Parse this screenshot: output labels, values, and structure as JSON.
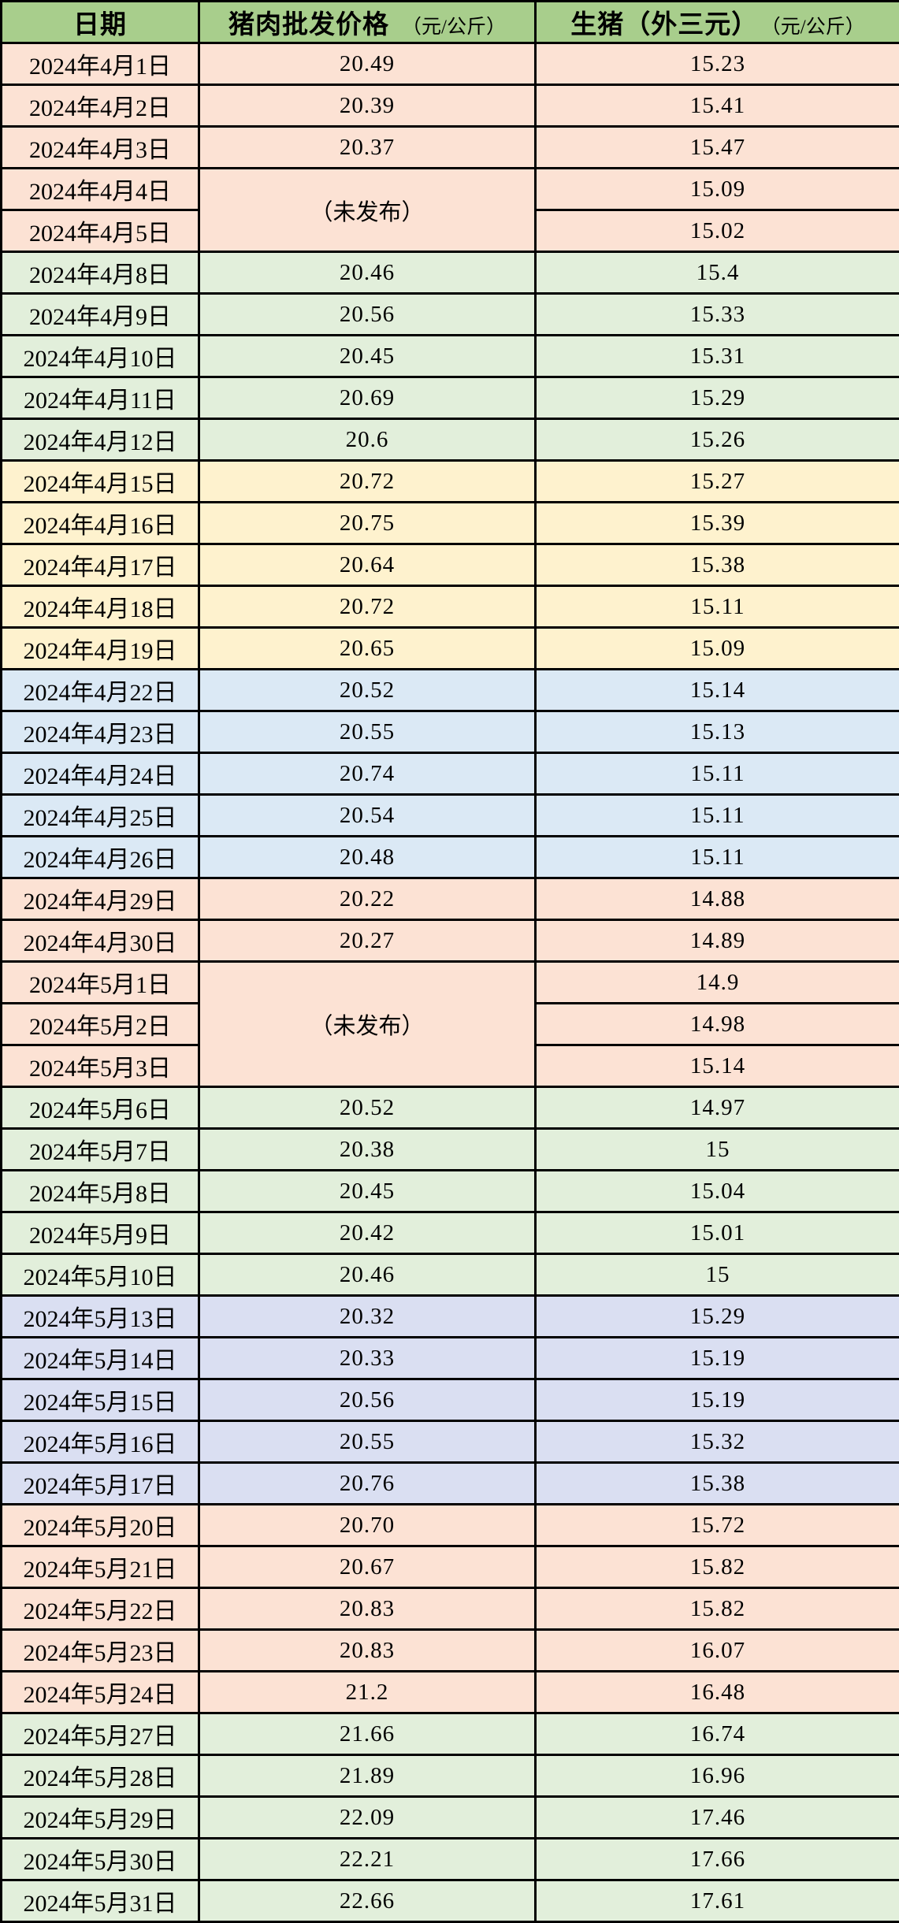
{
  "colors": {
    "header_bg": "#A8CE8C",
    "peach": "#FCE2D4",
    "light_green": "#E2EFDB",
    "light_yellow": "#FEF2CE",
    "light_blue": "#DBE9F5",
    "lavender": "#DADFF2",
    "border": "#000000",
    "text": "#000000"
  },
  "chart_data": {
    "type": "table",
    "columns": [
      {
        "label": "日期",
        "unit": ""
      },
      {
        "label": "猪肉批发价格",
        "unit": "（元/公斤）"
      },
      {
        "label": "生猪（外三元）",
        "unit": "（元/公斤）"
      }
    ],
    "not_published": "（未发布）",
    "rows": [
      {
        "date": "2024年4月1日",
        "pork": "20.49",
        "pig": "15.23",
        "color": "peach"
      },
      {
        "date": "2024年4月2日",
        "pork": "20.39",
        "pig": "15.41",
        "color": "peach"
      },
      {
        "date": "2024年4月3日",
        "pork": "20.37",
        "pig": "15.47",
        "color": "peach"
      },
      {
        "date": "2024年4月4日",
        "pork": "（未发布）",
        "pork_rowspan": 2,
        "pig": "15.09",
        "color": "peach"
      },
      {
        "date": "2024年4月5日",
        "pork": null,
        "pig": "15.02",
        "color": "peach"
      },
      {
        "date": "2024年4月8日",
        "pork": "20.46",
        "pig": "15.4",
        "color": "light_green"
      },
      {
        "date": "2024年4月9日",
        "pork": "20.56",
        "pig": "15.33",
        "color": "light_green"
      },
      {
        "date": "2024年4月10日",
        "pork": "20.45",
        "pig": "15.31",
        "color": "light_green"
      },
      {
        "date": "2024年4月11日",
        "pork": "20.69",
        "pig": "15.29",
        "color": "light_green"
      },
      {
        "date": "2024年4月12日",
        "pork": "20.6",
        "pig": "15.26",
        "color": "light_green"
      },
      {
        "date": "2024年4月15日",
        "pork": "20.72",
        "pig": "15.27",
        "color": "light_yellow"
      },
      {
        "date": "2024年4月16日",
        "pork": "20.75",
        "pig": "15.39",
        "color": "light_yellow"
      },
      {
        "date": "2024年4月17日",
        "pork": "20.64",
        "pig": "15.38",
        "color": "light_yellow"
      },
      {
        "date": "2024年4月18日",
        "pork": "20.72",
        "pig": "15.11",
        "color": "light_yellow"
      },
      {
        "date": "2024年4月19日",
        "pork": "20.65",
        "pig": "15.09",
        "color": "light_yellow"
      },
      {
        "date": "2024年4月22日",
        "pork": "20.52",
        "pig": "15.14",
        "color": "light_blue"
      },
      {
        "date": "2024年4月23日",
        "pork": "20.55",
        "pig": "15.13",
        "color": "light_blue"
      },
      {
        "date": "2024年4月24日",
        "pork": "20.74",
        "pig": "15.11",
        "color": "light_blue"
      },
      {
        "date": "2024年4月25日",
        "pork": "20.54",
        "pig": "15.11",
        "color": "light_blue"
      },
      {
        "date": "2024年4月26日",
        "pork": "20.48",
        "pig": "15.11",
        "color": "light_blue"
      },
      {
        "date": "2024年4月29日",
        "pork": "20.22",
        "pig": "14.88",
        "color": "peach"
      },
      {
        "date": "2024年4月30日",
        "pork": "20.27",
        "pig": "14.89",
        "color": "peach"
      },
      {
        "date": "2024年5月1日",
        "pork": "（未发布）",
        "pork_rowspan": 3,
        "pig": "14.9",
        "color": "peach"
      },
      {
        "date": "2024年5月2日",
        "pork": null,
        "pig": "14.98",
        "color": "peach"
      },
      {
        "date": "2024年5月3日",
        "pork": null,
        "pig": "15.14",
        "color": "peach"
      },
      {
        "date": "2024年5月6日",
        "pork": "20.52",
        "pig": "14.97",
        "color": "light_green"
      },
      {
        "date": "2024年5月7日",
        "pork": "20.38",
        "pig": "15",
        "color": "light_green"
      },
      {
        "date": "2024年5月8日",
        "pork": "20.45",
        "pig": "15.04",
        "color": "light_green"
      },
      {
        "date": "2024年5月9日",
        "pork": "20.42",
        "pig": "15.01",
        "color": "light_green"
      },
      {
        "date": "2024年5月10日",
        "pork": "20.46",
        "pig": "15",
        "color": "light_green"
      },
      {
        "date": "2024年5月13日",
        "pork": "20.32",
        "pig": "15.29",
        "color": "lavender"
      },
      {
        "date": "2024年5月14日",
        "pork": "20.33",
        "pig": "15.19",
        "color": "lavender"
      },
      {
        "date": "2024年5月15日",
        "pork": "20.56",
        "pig": "15.19",
        "color": "lavender"
      },
      {
        "date": "2024年5月16日",
        "pork": "20.55",
        "pig": "15.32",
        "color": "lavender"
      },
      {
        "date": "2024年5月17日",
        "pork": "20.76",
        "pig": "15.38",
        "color": "lavender"
      },
      {
        "date": "2024年5月20日",
        "pork": "20.70",
        "pig": "15.72",
        "color": "peach"
      },
      {
        "date": "2024年5月21日",
        "pork": "20.67",
        "pig": "15.82",
        "color": "peach"
      },
      {
        "date": "2024年5月22日",
        "pork": "20.83",
        "pig": "15.82",
        "color": "peach"
      },
      {
        "date": "2024年5月23日",
        "pork": "20.83",
        "pig": "16.07",
        "color": "peach"
      },
      {
        "date": "2024年5月24日",
        "pork": "21.2",
        "pig": "16.48",
        "color": "peach"
      },
      {
        "date": "2024年5月27日",
        "pork": "21.66",
        "pig": "16.74",
        "color": "light_green"
      },
      {
        "date": "2024年5月28日",
        "pork": "21.89",
        "pig": "16.96",
        "color": "light_green"
      },
      {
        "date": "2024年5月29日",
        "pork": "22.09",
        "pig": "17.46",
        "color": "light_green"
      },
      {
        "date": "2024年5月30日",
        "pork": "22.21",
        "pig": "17.66",
        "color": "light_green"
      },
      {
        "date": "2024年5月31日",
        "pork": "22.66",
        "pig": "17.61",
        "color": "light_green"
      }
    ]
  }
}
